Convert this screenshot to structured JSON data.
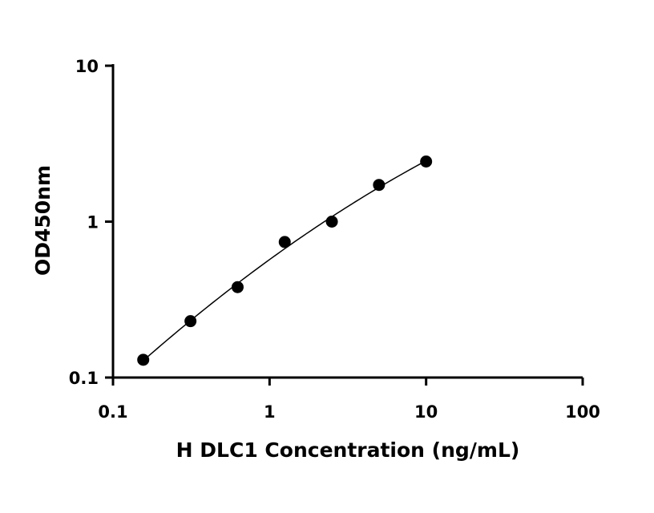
{
  "chart_data": {
    "type": "scatter",
    "title": "",
    "xlabel": "H DLC1 Concentration (ng/mL)",
    "ylabel": "OD450nm",
    "xscale": "log",
    "yscale": "log",
    "xlim": [
      0.1,
      100
    ],
    "ylim": [
      0.1,
      10
    ],
    "xticks": [
      0.1,
      1,
      10,
      100
    ],
    "xtick_labels": [
      "0.1",
      "1",
      "10",
      "100"
    ],
    "yticks": [
      0.1,
      1,
      10
    ],
    "ytick_labels": [
      "0.1",
      "1",
      "10"
    ],
    "grid": false,
    "legend": "none",
    "series": [
      {
        "x": [
          0.156,
          0.3125,
          0.625,
          1.25,
          2.5,
          5,
          10
        ],
        "y": [
          0.13,
          0.23,
          0.38,
          0.74,
          1.0,
          1.72,
          2.43
        ]
      }
    ],
    "fit_curve": "smooth"
  }
}
